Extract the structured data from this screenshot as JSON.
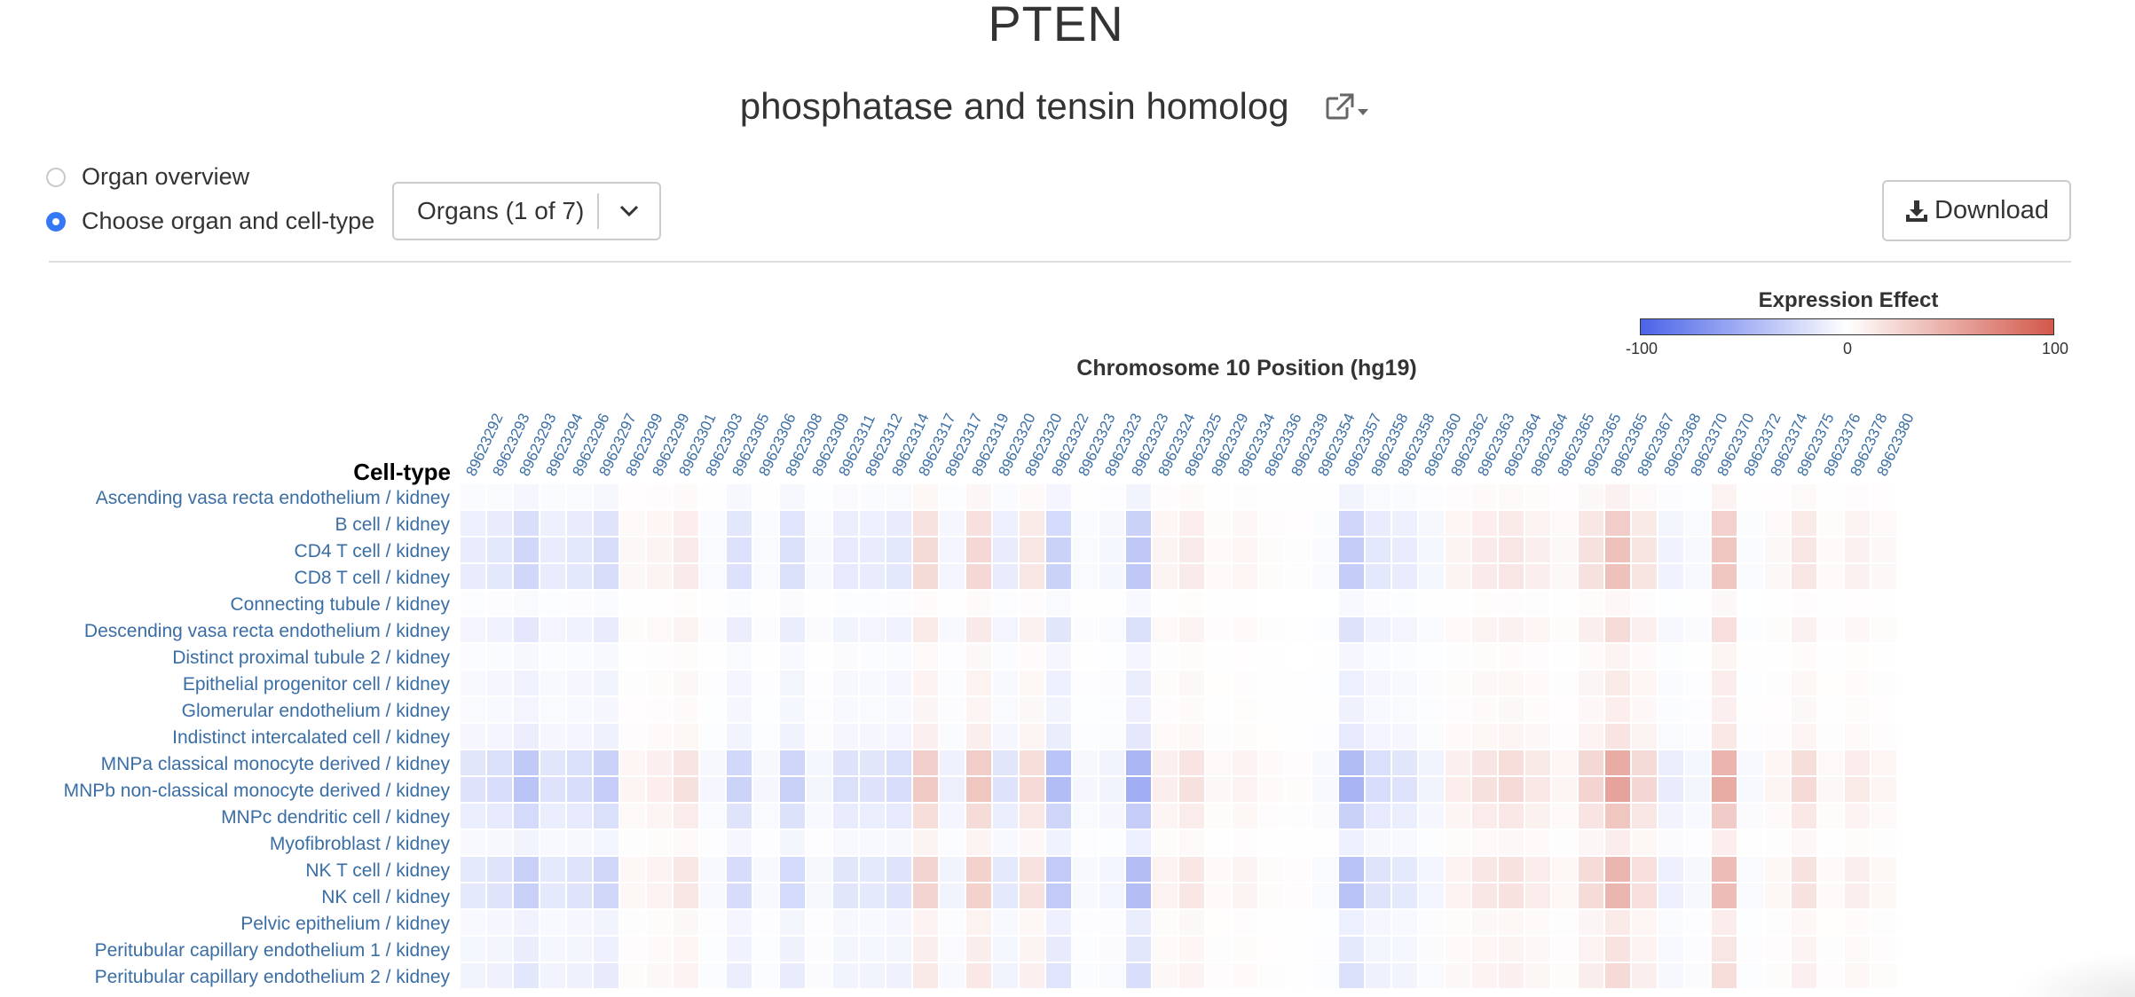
{
  "gene": {
    "symbol": "PTEN",
    "name": "phosphatase and tensin homolog",
    "external_link_icon": "external-link-icon"
  },
  "view_options": [
    {
      "label": "Organ overview",
      "selected": false
    },
    {
      "label": "Choose organ and cell-type",
      "selected": true
    }
  ],
  "organ_select": {
    "label": "Organs (1 of 7)",
    "icon": "chevron-down-icon"
  },
  "download": {
    "label": "Download",
    "icon": "download-icon"
  },
  "legend": {
    "title": "Expression Effect",
    "min_label": "-100",
    "mid_label": "0",
    "max_label": "100",
    "colors": {
      "low": "#4a63e8",
      "mid": "#ffffff",
      "high": "#d2584a"
    }
  },
  "chart_data": {
    "type": "heatmap",
    "title": "Chromosome 10 Position (hg19)",
    "ylabel": "Cell-type",
    "value_range": [
      -100,
      100
    ],
    "columns": [
      "89623292",
      "89623293",
      "89623293",
      "89623294",
      "89623296",
      "89623297",
      "89623299",
      "89623299",
      "89623301",
      "89623303",
      "89623305",
      "89623306",
      "89623308",
      "89623309",
      "89623311",
      "89623312",
      "89623314",
      "89623317",
      "89623317",
      "89623319",
      "89623320",
      "89623320",
      "89623322",
      "89623323",
      "89623323",
      "89623323",
      "89623324",
      "89623325",
      "89623329",
      "89623334",
      "89623336",
      "89623339",
      "89623354",
      "89623357",
      "89623358",
      "89623358",
      "89623360",
      "89623362",
      "89623363",
      "89623364",
      "89623364",
      "89623365",
      "89623365",
      "89623365",
      "89623367",
      "89623368",
      "89623370",
      "89623370",
      "89623372",
      "89623374",
      "89623375",
      "89623376",
      "89623378",
      "89623380"
    ],
    "rows": [
      "Ascending vasa recta endothelium / kidney",
      "B cell / kidney",
      "CD4 T cell / kidney",
      "CD8 T cell / kidney",
      "Connecting tubule / kidney",
      "Descending vasa recta endothelium / kidney",
      "Distinct proximal tubule 2 / kidney",
      "Epithelial progenitor cell / kidney",
      "Glomerular endothelium / kidney",
      "Indistinct intercalated cell / kidney",
      "MNPa classical monocyte derived / kidney",
      "MNPb non-classical monocyte derived / kidney",
      "MNPc dendritic cell / kidney",
      "Myofibroblast / kidney",
      "NK T cell / kidney",
      "NK cell / kidney",
      "Pelvic epithelium / kidney",
      "Peritubular capillary endothelium 1 / kidney",
      "Peritubular capillary endothelium 2 / kidney"
    ],
    "column_effects": [
      -18,
      -22,
      -38,
      -18,
      -22,
      -32,
      6,
      10,
      18,
      -5,
      -28,
      -5,
      -30,
      -6,
      -20,
      -18,
      -22,
      32,
      -10,
      34,
      -18,
      22,
      -42,
      -5,
      -8,
      -52,
      10,
      18,
      4,
      8,
      3,
      2,
      -4,
      -48,
      -22,
      -18,
      -8,
      10,
      18,
      22,
      14,
      6,
      26,
      55,
      24,
      -12,
      -6,
      50,
      -4,
      6,
      22,
      4,
      12,
      6
    ],
    "row_scales": [
      0.15,
      0.55,
      0.68,
      0.68,
      0.08,
      0.38,
      0.12,
      0.22,
      0.18,
      0.28,
      0.9,
      1.0,
      0.62,
      0.2,
      0.8,
      0.8,
      0.22,
      0.3,
      0.4
    ]
  }
}
